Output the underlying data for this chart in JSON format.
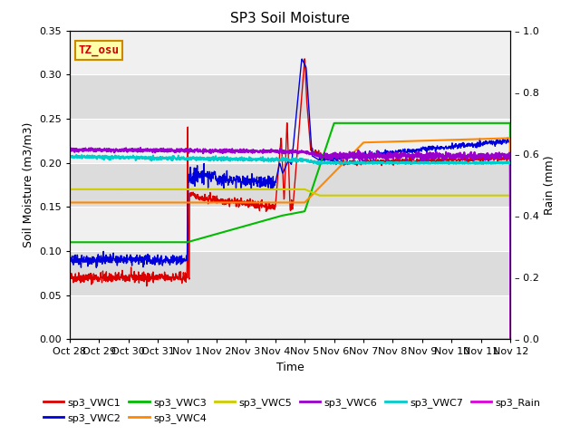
{
  "title": "SP3 Soil Moisture",
  "xlabel": "Time",
  "ylabel_left": "Soil Moisture (m3/m3)",
  "ylabel_right": "Rain (mm)",
  "ylim_left": [
    0.0,
    0.35
  ],
  "ylim_right": [
    0.0,
    1.0
  ],
  "bg_color": "#e8e8e8",
  "bg_band_light": "#f0f0f0",
  "bg_band_dark": "#dcdcdc",
  "annotation_text": "TZ_osu",
  "annotation_color": "#cc0000",
  "annotation_bg": "#ffffaa",
  "annotation_border": "#cc8800",
  "xtick_labels": [
    "Oct 28",
    "Oct 29",
    "Oct 30",
    "Oct 31",
    "Nov 1",
    "Nov 2",
    "Nov 3",
    "Nov 4",
    "Nov 5",
    "Nov 6",
    "Nov 7",
    "Nov 8",
    "Nov 9",
    "Nov 10",
    "Nov 11",
    "Nov 12"
  ],
  "series_colors": {
    "sp3_VWC1": "#dd0000",
    "sp3_VWC2": "#0000dd",
    "sp3_VWC3": "#00bb00",
    "sp3_VWC4": "#ff8800",
    "sp3_VWC5": "#cccc00",
    "sp3_VWC6": "#9900cc",
    "sp3_VWC7": "#00cccc",
    "sp3_Rain": "#dd00dd"
  }
}
